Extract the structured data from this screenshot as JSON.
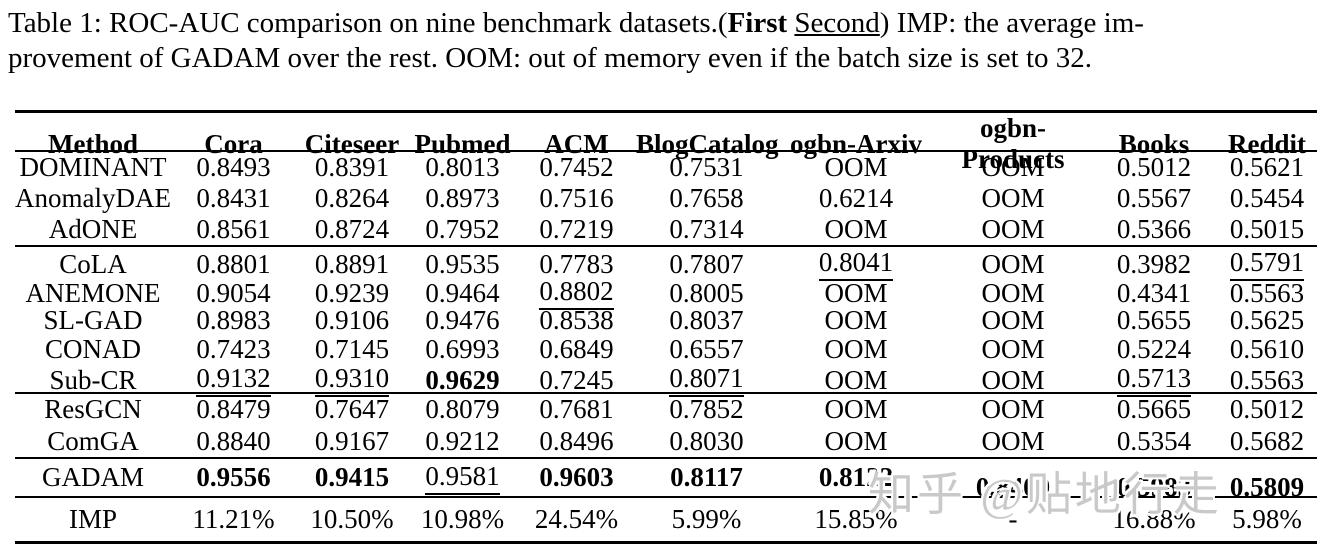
{
  "caption": {
    "part1": "Table 1: ROC-AUC comparison on nine benchmark datasets.(",
    "bold_word": "First",
    "underlined_word": "Second",
    "part2": ") IMP: the average im-",
    "line2": "provement of GADAM over the rest. OOM: out of memory even if the batch size is set to 32."
  },
  "table": {
    "columns": [
      "Method",
      "Cora",
      "Citeseer",
      "Pubmed",
      "ACM",
      "BlogCatalog",
      "ogbn-Arxiv",
      "ogbn-Products",
      "Books",
      "Reddit"
    ],
    "legend": {
      "bold_means": "First",
      "underline_means": "Second",
      "oom_means": "out of memory even if the batch size is set to 32"
    },
    "groups": [
      {
        "rows": [
          {
            "method": "DOMINANT",
            "cells": [
              "0.8493",
              "0.8391",
              "0.8013",
              "0.7452",
              "0.7531",
              "OOM",
              "OOM",
              "0.5012",
              "0.5621"
            ]
          },
          {
            "method": "AnomalyDAE",
            "cells": [
              "0.8431",
              "0.8264",
              "0.8973",
              "0.7516",
              "0.7658",
              "0.6214",
              "OOM",
              "0.5567",
              "0.5454"
            ]
          },
          {
            "method": "AdONE",
            "cells": [
              "0.8561",
              "0.8724",
              "0.7952",
              "0.7219",
              "0.7314",
              "OOM",
              "OOM",
              "0.5366",
              "0.5015"
            ]
          }
        ]
      },
      {
        "rows": [
          {
            "method": "CoLA",
            "cells": [
              "0.8801",
              "0.8891",
              "0.9535",
              "0.7783",
              "0.7807",
              "u:0.8041",
              "OOM",
              "0.3982",
              "u:0.5791"
            ]
          },
          {
            "method": "ANEMONE",
            "cells": [
              "0.9054",
              "0.9239",
              "0.9464",
              "u:0.8802",
              "0.8005",
              "OOM",
              "OOM",
              "0.4341",
              "0.5563"
            ]
          },
          {
            "method": "SL-GAD",
            "cells": [
              "0.8983",
              "0.9106",
              "0.9476",
              "0.8538",
              "0.8037",
              "OOM",
              "OOM",
              "0.5655",
              "0.5625"
            ]
          },
          {
            "method": "CONAD",
            "cells": [
              "0.7423",
              "0.7145",
              "0.6993",
              "0.6849",
              "0.6557",
              "OOM",
              "OOM",
              "0.5224",
              "0.5610"
            ]
          },
          {
            "method": "Sub-CR",
            "cells": [
              "u:0.9132",
              "u:0.9310",
              "b:0.9629",
              "0.7245",
              "u:0.8071",
              "OOM",
              "OOM",
              "u:0.5713",
              "0.5563"
            ]
          }
        ]
      },
      {
        "rows": [
          {
            "method": "ResGCN",
            "cells": [
              "0.8479",
              "0.7647",
              "0.8079",
              "0.7681",
              "0.7852",
              "OOM",
              "OOM",
              "0.5665",
              "0.5012"
            ]
          },
          {
            "method": "ComGA",
            "cells": [
              "0.8840",
              "0.9167",
              "0.9212",
              "0.8496",
              "0.8030",
              "OOM",
              "OOM",
              "0.5354",
              "0.5682"
            ]
          }
        ]
      },
      {
        "rows": [
          {
            "method": "GADAM",
            "cells": [
              "b:0.9556",
              "b:0.9415",
              "u:0.9581",
              "b:0.9603",
              "b:0.8117",
              "b:0.8122",
              "bd:0.8409",
              "bd:0.5983",
              "bd:0.5809"
            ]
          }
        ]
      },
      {
        "rows": [
          {
            "method": "IMP",
            "cells": [
              "11.21%",
              "10.50%",
              "10.98%",
              "24.54%",
              "5.99%",
              "15.85%",
              "-",
              "16.88%",
              "5.98%"
            ]
          }
        ]
      }
    ]
  },
  "watermark": {
    "text": "知乎 @贴地行走"
  },
  "colors": {
    "text": "#000000",
    "background": "#ffffff",
    "watermark": "#c9c9c9"
  }
}
